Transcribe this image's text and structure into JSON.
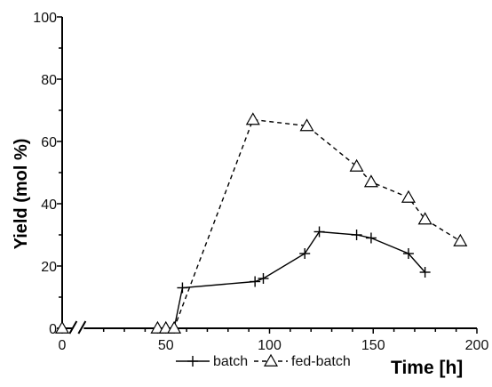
{
  "chart_data": {
    "type": "line",
    "title": "",
    "xlabel": "Time [h]",
    "ylabel": "Yield (mol %)",
    "xlim": [
      0,
      200
    ],
    "ylim": [
      0,
      100
    ],
    "x_ticks": [
      "0",
      "50",
      "100",
      "150",
      "200"
    ],
    "y_ticks": [
      "0",
      "20",
      "40",
      "60",
      "80",
      "100"
    ],
    "grid": false,
    "legend_position": "bottom",
    "axis_break_on_x": true,
    "series": [
      {
        "name": "batch",
        "marker": "plus",
        "line_style": "solid",
        "color": "#000000",
        "points": [
          {
            "x": 0,
            "y": 0
          },
          {
            "x": 46,
            "y": 0
          },
          {
            "x": 50,
            "y": 0
          },
          {
            "x": 54,
            "y": 0
          },
          {
            "x": 58,
            "y": 13
          },
          {
            "x": 93,
            "y": 15
          },
          {
            "x": 97,
            "y": 16
          },
          {
            "x": 117,
            "y": 24
          },
          {
            "x": 124,
            "y": 31
          },
          {
            "x": 142,
            "y": 30
          },
          {
            "x": 149,
            "y": 29
          },
          {
            "x": 167,
            "y": 24
          },
          {
            "x": 175,
            "y": 18
          }
        ]
      },
      {
        "name": "fed-batch",
        "marker": "triangle",
        "line_style": "dashed",
        "color": "#000000",
        "points": [
          {
            "x": 0,
            "y": 0
          },
          {
            "x": 46,
            "y": 0
          },
          {
            "x": 50,
            "y": 0
          },
          {
            "x": 54,
            "y": 0
          },
          {
            "x": 92,
            "y": 67
          },
          {
            "x": 118,
            "y": 65
          },
          {
            "x": 142,
            "y": 52
          },
          {
            "x": 149,
            "y": 47
          },
          {
            "x": 167,
            "y": 42
          },
          {
            "x": 175,
            "y": 35
          },
          {
            "x": 192,
            "y": 28
          }
        ]
      }
    ]
  }
}
